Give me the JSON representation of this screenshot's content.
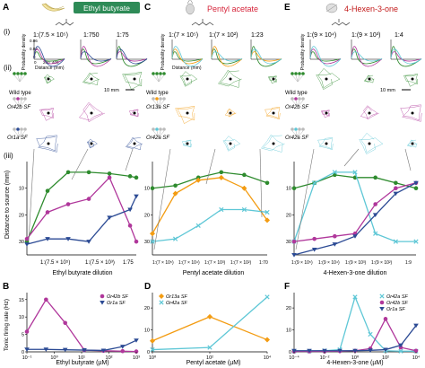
{
  "panels": {
    "A": {
      "letter": "A",
      "odor": "Ethyl butyrate",
      "odor_color": "#2e8b57",
      "row_i": "(i)",
      "row_ii": "(ii)",
      "row_iii": "(iii)",
      "dilutions": [
        "1:(7.5 × 10⁵)",
        "1:750",
        "1:75"
      ],
      "prob_label": "Probability density",
      "distance_label": "Distance (mm)",
      "prob_ticks": [
        "0.06",
        "0.03",
        "0"
      ],
      "dist_ticks": [
        "0",
        "200",
        "400"
      ],
      "scale_bar": "10 mm",
      "genotypes": [
        "Wild type",
        "Or42b SF",
        "Or1a SF"
      ]
    },
    "C": {
      "letter": "C",
      "odor": "Pentyl acetate",
      "odor_color": "#d6243a",
      "dilutions": [
        "1:(7 × 10⁵)",
        "1:(7 × 10²)",
        "1:23"
      ],
      "prob_label": "Probability density",
      "distance_label": "Distance (mm)",
      "genotypes": [
        "Wild type",
        "Or13a SF",
        "Or42a SF"
      ]
    },
    "E": {
      "letter": "E",
      "odor": "4-Hexen-3-one",
      "odor_color": "#c21a1a",
      "dilutions": [
        "1:(9 × 10⁴)",
        "1:(9 × 10³)",
        "1:4"
      ],
      "prob_label": "Probability density",
      "scale_bar": "10 mm",
      "genotypes": [
        "Wild type",
        "Or42b SF",
        "Or42a SF"
      ]
    }
  },
  "colors": {
    "wild_type": "#2e8b2e",
    "or42b": "#b0379b",
    "or1a": "#2b4a94",
    "or13a": "#f39c12",
    "or42a": "#5ec7d6",
    "grey": "#555555"
  },
  "chart_data": [
    {
      "panel": "A(iii)",
      "type": "line",
      "ylabel": "Distance to source (mm)",
      "xlabel": "Ethyl butyrate dilution",
      "ylim": [
        35,
        0
      ],
      "y_ticks": [
        "10",
        "20",
        "30"
      ],
      "x_ticks": [
        "1:(7.5 × 10⁵)",
        "1:(7.5 × 10³)",
        "1:75"
      ],
      "x": [
        0,
        1,
        2,
        3,
        4,
        5,
        5.3
      ],
      "series": [
        {
          "color": "#2e8b2e",
          "marker": "circle",
          "values": [
            30,
            11,
            4,
            4,
            4.5,
            5.5,
            6
          ]
        },
        {
          "color": "#b0379b",
          "marker": "circle",
          "values": [
            29,
            19,
            16,
            14,
            6,
            24,
            30
          ]
        },
        {
          "color": "#2b4a94",
          "marker": "triangle",
          "values": [
            31,
            29,
            29,
            30,
            21,
            18,
            13
          ]
        }
      ]
    },
    {
      "panel": "C(iii)",
      "type": "line",
      "xlabel": "Pentyl acetate dilution",
      "ylim": [
        35,
        0
      ],
      "y_ticks": [
        "10",
        "20",
        "30"
      ],
      "x_ticks": [
        "1:(7 × 10⁵)",
        "1:(7 × 10⁴)",
        "1:(7 × 10³)",
        "1:(7 × 10²)",
        "1:70"
      ],
      "x": [
        0,
        1,
        2,
        3,
        4,
        5
      ],
      "series": [
        {
          "color": "#2e8b2e",
          "marker": "circle",
          "values": [
            10,
            9,
            6,
            4,
            5,
            8
          ]
        },
        {
          "color": "#f39c12",
          "marker": "diamond",
          "values": [
            27,
            12,
            7,
            6,
            10,
            22
          ]
        },
        {
          "color": "#5ec7d6",
          "marker": "x",
          "values": [
            30,
            29,
            24,
            18,
            18,
            19
          ]
        }
      ]
    },
    {
      "panel": "E(iii)",
      "type": "line",
      "xlabel": "4-Hexen-3-one dilution",
      "ylim": [
        35,
        0
      ],
      "y_ticks": [
        "10",
        "20",
        "30"
      ],
      "x_ticks": [
        "1:(9 × 10⁵)",
        "1:(9 × 10⁴)",
        "1:(9 × 10³)",
        "1:(9 × 10²)",
        "1:9"
      ],
      "x": [
        0,
        1,
        2,
        3,
        4,
        5,
        6
      ],
      "series": [
        {
          "color": "#2e8b2e",
          "marker": "circle",
          "values": [
            10,
            8,
            5,
            6,
            6,
            8,
            10
          ]
        },
        {
          "color": "#5ec7d6",
          "marker": "x",
          "values": [
            30,
            8,
            4,
            4,
            27,
            30,
            30
          ]
        },
        {
          "color": "#b0379b",
          "marker": "circle",
          "values": [
            30,
            29,
            28,
            27,
            16,
            10,
            8
          ]
        },
        {
          "color": "#2b4a94",
          "marker": "triangle",
          "values": [
            36,
            33,
            31,
            28,
            20,
            12,
            8
          ]
        }
      ]
    },
    {
      "panel": "B",
      "type": "line",
      "letter": "B",
      "ylabel": "Tonic firing rate (Hz)",
      "xlabel": "Ethyl butyrate (µM)",
      "ylim": [
        0,
        17
      ],
      "y_ticks": [
        "0",
        "5",
        "10",
        "15"
      ],
      "x_ticks": [
        "10⁻¹",
        "10⁰",
        "10¹",
        "10²",
        "10³"
      ],
      "x": [
        -1,
        -0.3,
        0.4,
        1.1,
        1.8,
        2.5,
        3
      ],
      "series": [
        {
          "name": "Or42b SF",
          "color": "#b0379b",
          "marker": "circle",
          "values": [
            5.8,
            15,
            8.3,
            0.5,
            0.3,
            0.2,
            0.1
          ]
        },
        {
          "name": "Or1a SF",
          "color": "#2b4a94",
          "marker": "triangle",
          "values": [
            0.7,
            0.7,
            0.6,
            0.5,
            0.4,
            1.5,
            3.3
          ]
        }
      ]
    },
    {
      "panel": "D",
      "type": "line",
      "letter": "D",
      "xlabel": "Pentyl acetate (µM)",
      "ylim": [
        0,
        27
      ],
      "y_ticks": [
        "0",
        "10",
        "20"
      ],
      "x_ticks": [
        "10⁰",
        "10²",
        "10⁴"
      ],
      "x": [
        0,
        2,
        4
      ],
      "series": [
        {
          "name": "Or13a SF",
          "color": "#f39c12",
          "marker": "diamond",
          "values": [
            5,
            16,
            5.5
          ]
        },
        {
          "name": "Or42a SF",
          "color": "#5ec7d6",
          "marker": "x",
          "values": [
            1,
            2,
            25
          ]
        }
      ]
    },
    {
      "panel": "F",
      "type": "line",
      "letter": "F",
      "xlabel": "4-Hexen-3-one (µM)",
      "ylim": [
        0,
        27
      ],
      "y_ticks": [
        "0",
        "10",
        "20"
      ],
      "x_ticks": [
        "10⁻⁴",
        "10⁻²",
        "10⁰",
        "10²",
        "10⁴"
      ],
      "x": [
        -4,
        -3,
        -2,
        -1,
        0,
        1,
        2,
        3,
        4
      ],
      "series": [
        {
          "name": "Or42a SF",
          "color": "#5ec7d6",
          "marker": "x",
          "values": [
            0.3,
            0.3,
            0.5,
            1,
            25,
            8,
            0.5,
            0.3,
            0.3
          ]
        },
        {
          "name": "Or42b SF",
          "color": "#b0379b",
          "marker": "circle",
          "values": [
            0.2,
            0.2,
            0.2,
            0.3,
            0.5,
            1.5,
            15,
            2,
            0.5
          ]
        },
        {
          "name": "Or1a SF",
          "color": "#2b4a94",
          "marker": "triangle",
          "values": [
            0.5,
            0.5,
            0.5,
            0.5,
            0.5,
            0.7,
            1,
            3,
            12
          ]
        }
      ]
    }
  ]
}
